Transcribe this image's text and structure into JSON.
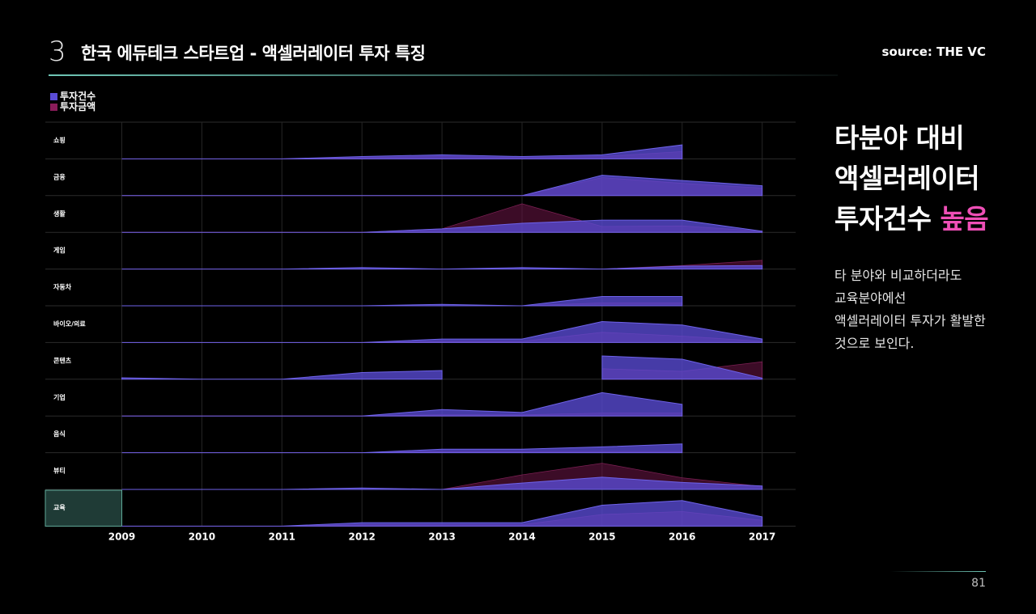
{
  "header": {
    "number": "3",
    "title": "한국 에듀테크 스타트업 - 액셀러레이터 투자 특징",
    "source": "source: THE VC"
  },
  "side": {
    "headline_1": "타분야 대비",
    "headline_2": "액셀러레이터",
    "headline_3": "투자건수 ",
    "headline_3_highlight": "높음",
    "desc_1": "타 분야와 비교하더라도",
    "desc_2": "교육분야에선",
    "desc_3": "액셀러레이터 투자가 활발한",
    "desc_4": "것으로 보인다."
  },
  "footer": {
    "page": "81"
  },
  "colors": {
    "count": "#5a4cd6",
    "amount": "#6e1547",
    "highlight": "#ee4fb6",
    "selected_row": "#1f3b36"
  },
  "chart_data": {
    "type": "area",
    "layout": "small-multiples",
    "x": [
      2009,
      2010,
      2011,
      2012,
      2013,
      2014,
      2015,
      2016,
      2017
    ],
    "x_tick_labels": [
      "2009",
      "2010",
      "2011",
      "2012",
      "2013",
      "2014",
      "2015",
      "2016",
      "2017"
    ],
    "legend": [
      "투자건수",
      "투자금액"
    ],
    "legend_position": "top-left",
    "grid": true,
    "highlighted_category": "교육",
    "categories": [
      {
        "name": "쇼핑",
        "count": [
          0,
          0,
          0,
          0.08,
          0.14,
          0.08,
          0.14,
          0.48,
          null
        ],
        "amount": [
          0,
          0,
          0,
          0.04,
          0.08,
          0.04,
          0.08,
          0.25,
          null
        ]
      },
      {
        "name": "금융",
        "count": [
          0,
          0,
          0,
          0,
          0,
          0,
          0.7,
          0.52,
          0.34
        ],
        "amount": [
          0,
          0,
          0,
          0,
          0,
          0,
          0.62,
          0.42,
          0.26
        ]
      },
      {
        "name": "생활",
        "count": [
          0,
          0,
          0,
          0,
          0.12,
          0.31,
          0.42,
          0.42,
          0.04
        ],
        "amount": [
          0,
          0,
          0,
          0,
          0.12,
          0.98,
          0.2,
          0.22,
          0.04
        ]
      },
      {
        "name": "게임",
        "count": [
          0,
          0,
          0,
          0.05,
          0,
          0.05,
          0,
          0.1,
          0.12
        ],
        "amount": [
          0,
          0,
          0,
          0,
          0,
          0,
          0,
          0.12,
          0.3
        ]
      },
      {
        "name": "자동차",
        "count": [
          0,
          0,
          0,
          0,
          0.05,
          0,
          0.32,
          0.32,
          null
        ],
        "amount": [
          0,
          0,
          0,
          0,
          0,
          0,
          0.1,
          0.1,
          null
        ]
      },
      {
        "name": "바이오/의료",
        "count": [
          0,
          0,
          0,
          0,
          0.12,
          0.12,
          0.72,
          0.6,
          0.12
        ],
        "amount": [
          0,
          0,
          0,
          0,
          0.04,
          0.04,
          0.35,
          0.22,
          0.04
        ]
      },
      {
        "name": "콘텐츠",
        "count": [
          0.05,
          0,
          0,
          0.23,
          0.3,
          null,
          0.8,
          0.69,
          0.04
        ],
        "amount": [
          0,
          0,
          0,
          0,
          0,
          null,
          0.36,
          0.27,
          0.6
        ]
      },
      {
        "name": "기업",
        "count": [
          0,
          0,
          0,
          0,
          0.22,
          0.12,
          0.8,
          0.4,
          null
        ],
        "amount": [
          0,
          0,
          0,
          0,
          0.04,
          0.04,
          0.1,
          0.1,
          null
        ]
      },
      {
        "name": "음식",
        "count": [
          0,
          0,
          0,
          0,
          0.12,
          0.12,
          0.2,
          0.3,
          null
        ],
        "amount": [
          0,
          0,
          0,
          0,
          0.04,
          0.04,
          0.04,
          0.04,
          null
        ]
      },
      {
        "name": "뷰티",
        "count": [
          0,
          0,
          0,
          0.05,
          0,
          0.22,
          0.42,
          0.24,
          0.12
        ],
        "amount": [
          0,
          0,
          0,
          0,
          0,
          0.5,
          0.9,
          0.4,
          0.1
        ]
      },
      {
        "name": "교육",
        "count": [
          0,
          0,
          0,
          0.12,
          0.12,
          0.12,
          0.72,
          0.88,
          0.32
        ],
        "amount": [
          0,
          0,
          0,
          0.05,
          0.05,
          0.05,
          0.4,
          0.5,
          0.2
        ]
      }
    ]
  }
}
